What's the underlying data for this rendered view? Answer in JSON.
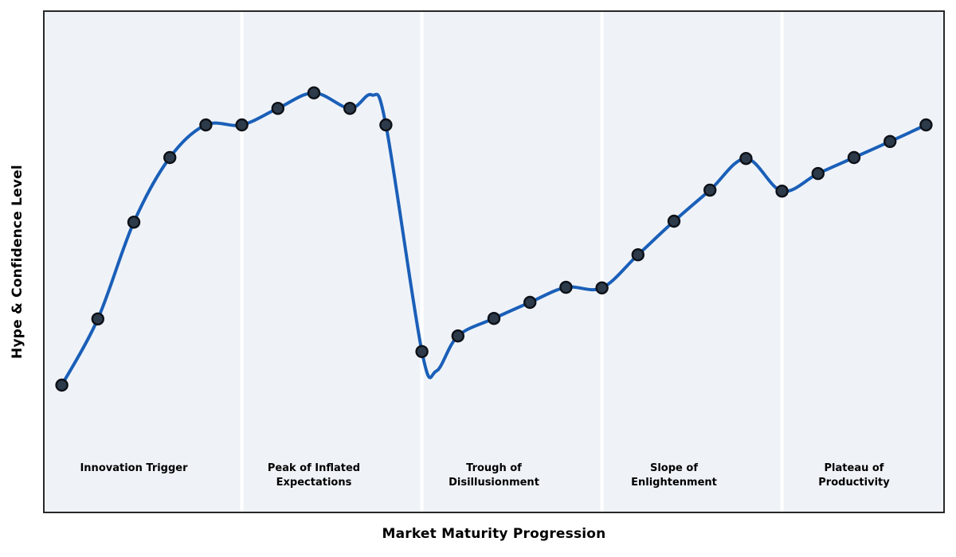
{
  "chart_data": {
    "type": "line",
    "title": "",
    "xlabel": "Market Maturity Progression",
    "ylabel": "Hype & Confidence Level",
    "x": [
      0,
      1,
      2,
      3,
      4,
      5,
      6,
      7,
      8,
      9,
      10,
      11,
      12,
      13,
      14,
      15,
      16,
      17,
      18,
      19,
      20,
      21,
      22,
      23,
      24
    ],
    "series": [
      {
        "name": "Hype & Confidence Level",
        "values": [
          25.4,
          38.6,
          57.9,
          70.8,
          77.3,
          77.3,
          80.6,
          83.7,
          80.6,
          77.3,
          32.1,
          35.2,
          38.7,
          41.9,
          44.9,
          44.8,
          51.4,
          58.1,
          64.3,
          70.6,
          64.1,
          67.6,
          70.8,
          74.0,
          77.3
        ]
      }
    ],
    "xlim": [
      -0.5,
      24.5
    ],
    "ylim": [
      0,
      100
    ],
    "grid": false,
    "ticks": "none",
    "legend": "none",
    "markers": true,
    "phase_boundaries_x": [
      5,
      10,
      15,
      20
    ],
    "phases": [
      {
        "slug": "innovation-trigger",
        "label": "Innovation Trigger",
        "lines": [
          "Innovation Trigger"
        ],
        "x_center": 2
      },
      {
        "slug": "peak-of-inflated-expectations",
        "label": "Peak of Inflated Expectations",
        "lines": [
          "Peak of Inflated",
          "Expectations"
        ],
        "x_center": 7
      },
      {
        "slug": "trough-of-disillusionment",
        "label": "Trough of Disillusionment",
        "lines": [
          "Trough of",
          "Disillusionment"
        ],
        "x_center": 12
      },
      {
        "slug": "slope-of-enlightenment",
        "label": "Slope of Enlightenment",
        "lines": [
          "Slope of",
          "Enlightenment"
        ],
        "x_center": 17
      },
      {
        "slug": "plateau-of-productivity",
        "label": "Plateau of Productivity",
        "lines": [
          "Plateau of",
          "Productivity"
        ],
        "x_center": 22
      }
    ],
    "spline_overshoot_helpers": [
      {
        "after_index": 8,
        "x": 8.6,
        "value": 83.3
      },
      {
        "after_index": 10,
        "x": 10.4,
        "value": 28.2
      }
    ],
    "line_color": "#1a5fb8",
    "marker_color": "#2c3a4a",
    "marker_edge_color": "#0d1117",
    "plot_bg": "#eff3f8",
    "divider_color": "#ffffff",
    "border_color": "#282828",
    "text_color": "#000000"
  }
}
